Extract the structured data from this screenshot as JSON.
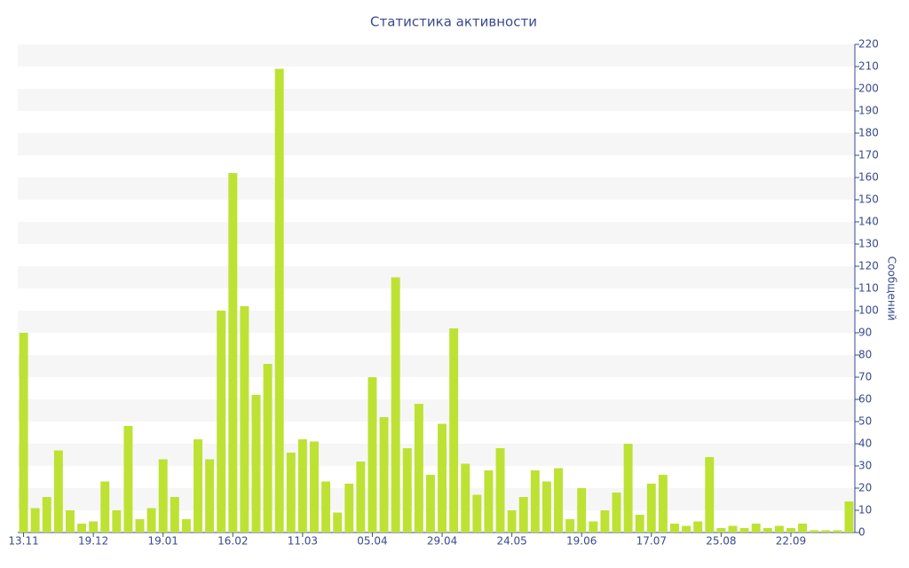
{
  "chart_data": {
    "type": "bar",
    "title": "Статистика активности",
    "y_axis_label": "Сообщений",
    "categories": [
      "13.11",
      null,
      null,
      null,
      null,
      null,
      "19.12",
      null,
      null,
      null,
      null,
      null,
      "19.01",
      null,
      null,
      null,
      null,
      null,
      "16.02",
      null,
      null,
      null,
      null,
      null,
      "11.03",
      null,
      null,
      null,
      null,
      null,
      "05.04",
      null,
      null,
      null,
      null,
      null,
      "29.04",
      null,
      null,
      null,
      null,
      null,
      "24.05",
      null,
      null,
      null,
      null,
      null,
      "19.06",
      null,
      null,
      null,
      null,
      null,
      "17.07",
      null,
      null,
      null,
      null,
      null,
      "25.08",
      null,
      null,
      null,
      null,
      null,
      "22.09",
      null,
      null,
      null,
      null,
      null
    ],
    "values": [
      90,
      11,
      16,
      37,
      10,
      4,
      5,
      23,
      10,
      48,
      6,
      11,
      33,
      16,
      6,
      42,
      33,
      100,
      162,
      102,
      62,
      76,
      209,
      36,
      42,
      41,
      23,
      9,
      22,
      32,
      70,
      52,
      115,
      38,
      58,
      26,
      49,
      92,
      31,
      17,
      28,
      38,
      10,
      16,
      28,
      23,
      29,
      6,
      20,
      5,
      10,
      18,
      40,
      8,
      22,
      26,
      4,
      3,
      5,
      34,
      2,
      3,
      2,
      4,
      2,
      3,
      2,
      4,
      1,
      1,
      1,
      14
    ],
    "color": "#bde234",
    "ylim": [
      0,
      220
    ],
    "yticks": [
      0,
      10,
      20,
      30,
      40,
      50,
      60,
      70,
      80,
      90,
      100,
      110,
      120,
      130,
      140,
      150,
      160,
      170,
      180,
      190,
      200,
      210,
      220
    ],
    "grid": true,
    "y_axis_side": "right"
  }
}
